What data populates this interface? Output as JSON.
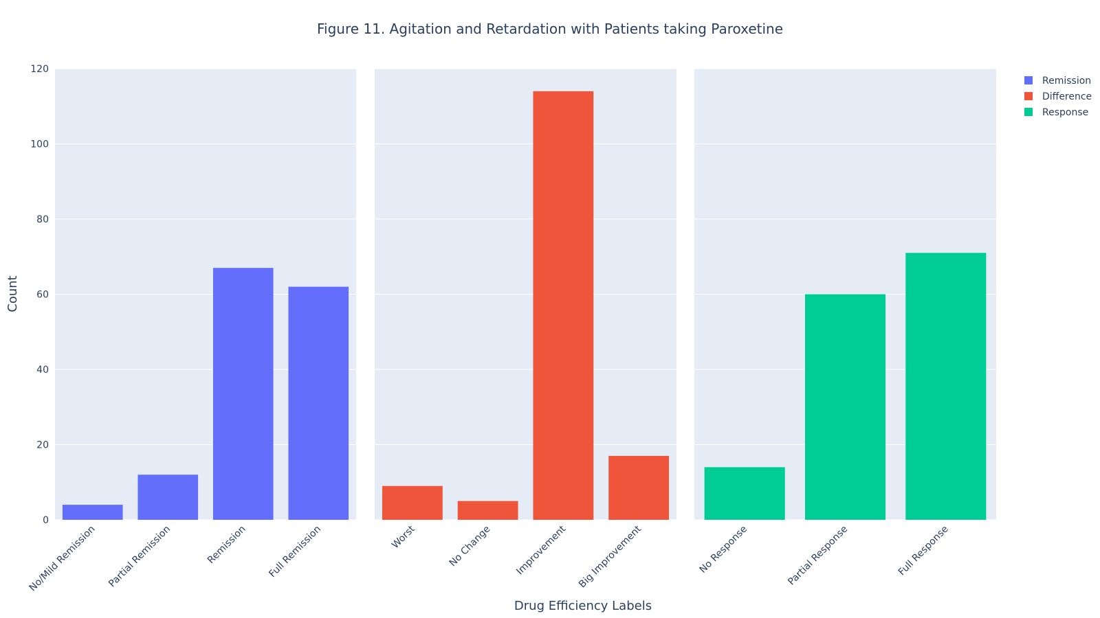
{
  "chart_data": {
    "type": "bar",
    "title": "Figure 11. Agitation and Retardation with Patients taking Paroxetine",
    "xlabel": "Drug Efficiency Labels",
    "ylabel": "Count",
    "ylim": [
      0,
      120
    ],
    "yticks": [
      "0",
      "20",
      "40",
      "60",
      "80",
      "100",
      "120"
    ],
    "grid": true,
    "legend_position": "top-right",
    "panels": [
      {
        "series": "Remission",
        "color": "#636efa",
        "categories": [
          "No/Mild Remission",
          "Partial Remission",
          "Remission",
          "Full Remission"
        ],
        "values": [
          4,
          12,
          67,
          62
        ]
      },
      {
        "series": "Difference",
        "color": "#ef553b",
        "categories": [
          "Worst",
          "No Change",
          "Improvement",
          "Big Improvement"
        ],
        "values": [
          9,
          5,
          114,
          17
        ]
      },
      {
        "series": "Response",
        "color": "#00cc96",
        "categories": [
          "No Response",
          "Partial Response",
          "Full Response"
        ],
        "values": [
          14,
          60,
          71
        ]
      }
    ],
    "legend": [
      {
        "name": "Remission",
        "color": "#636efa"
      },
      {
        "name": "Difference",
        "color": "#ef553b"
      },
      {
        "name": "Response",
        "color": "#00cc96"
      }
    ]
  }
}
